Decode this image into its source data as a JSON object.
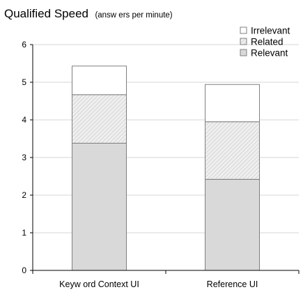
{
  "chart_data": {
    "type": "bar",
    "stacked": true,
    "title": "Qualified Speed",
    "subtitle": "(answ ers per minute)",
    "xlabel": "",
    "ylabel": "",
    "ylim": [
      0,
      6
    ],
    "yticks": [
      "0",
      "1",
      "2",
      "3",
      "4",
      "5",
      "6"
    ],
    "grid": true,
    "legend_position": "top-right",
    "categories": [
      "Keyw ord Context UI",
      "Reference UI"
    ],
    "series": [
      {
        "name": "Relevant",
        "values": [
          3.38,
          2.42
        ],
        "fill": "#d9d9d9",
        "pattern": "solid"
      },
      {
        "name": "Related",
        "values": [
          1.29,
          1.53
        ],
        "fill": "#e6e6e6",
        "pattern": "hatch"
      },
      {
        "name": "Irrelevant",
        "values": [
          0.76,
          0.99
        ],
        "fill": "#ffffff",
        "pattern": "solid"
      }
    ],
    "legend_order": [
      "Irrelevant",
      "Related",
      "Relevant"
    ]
  }
}
